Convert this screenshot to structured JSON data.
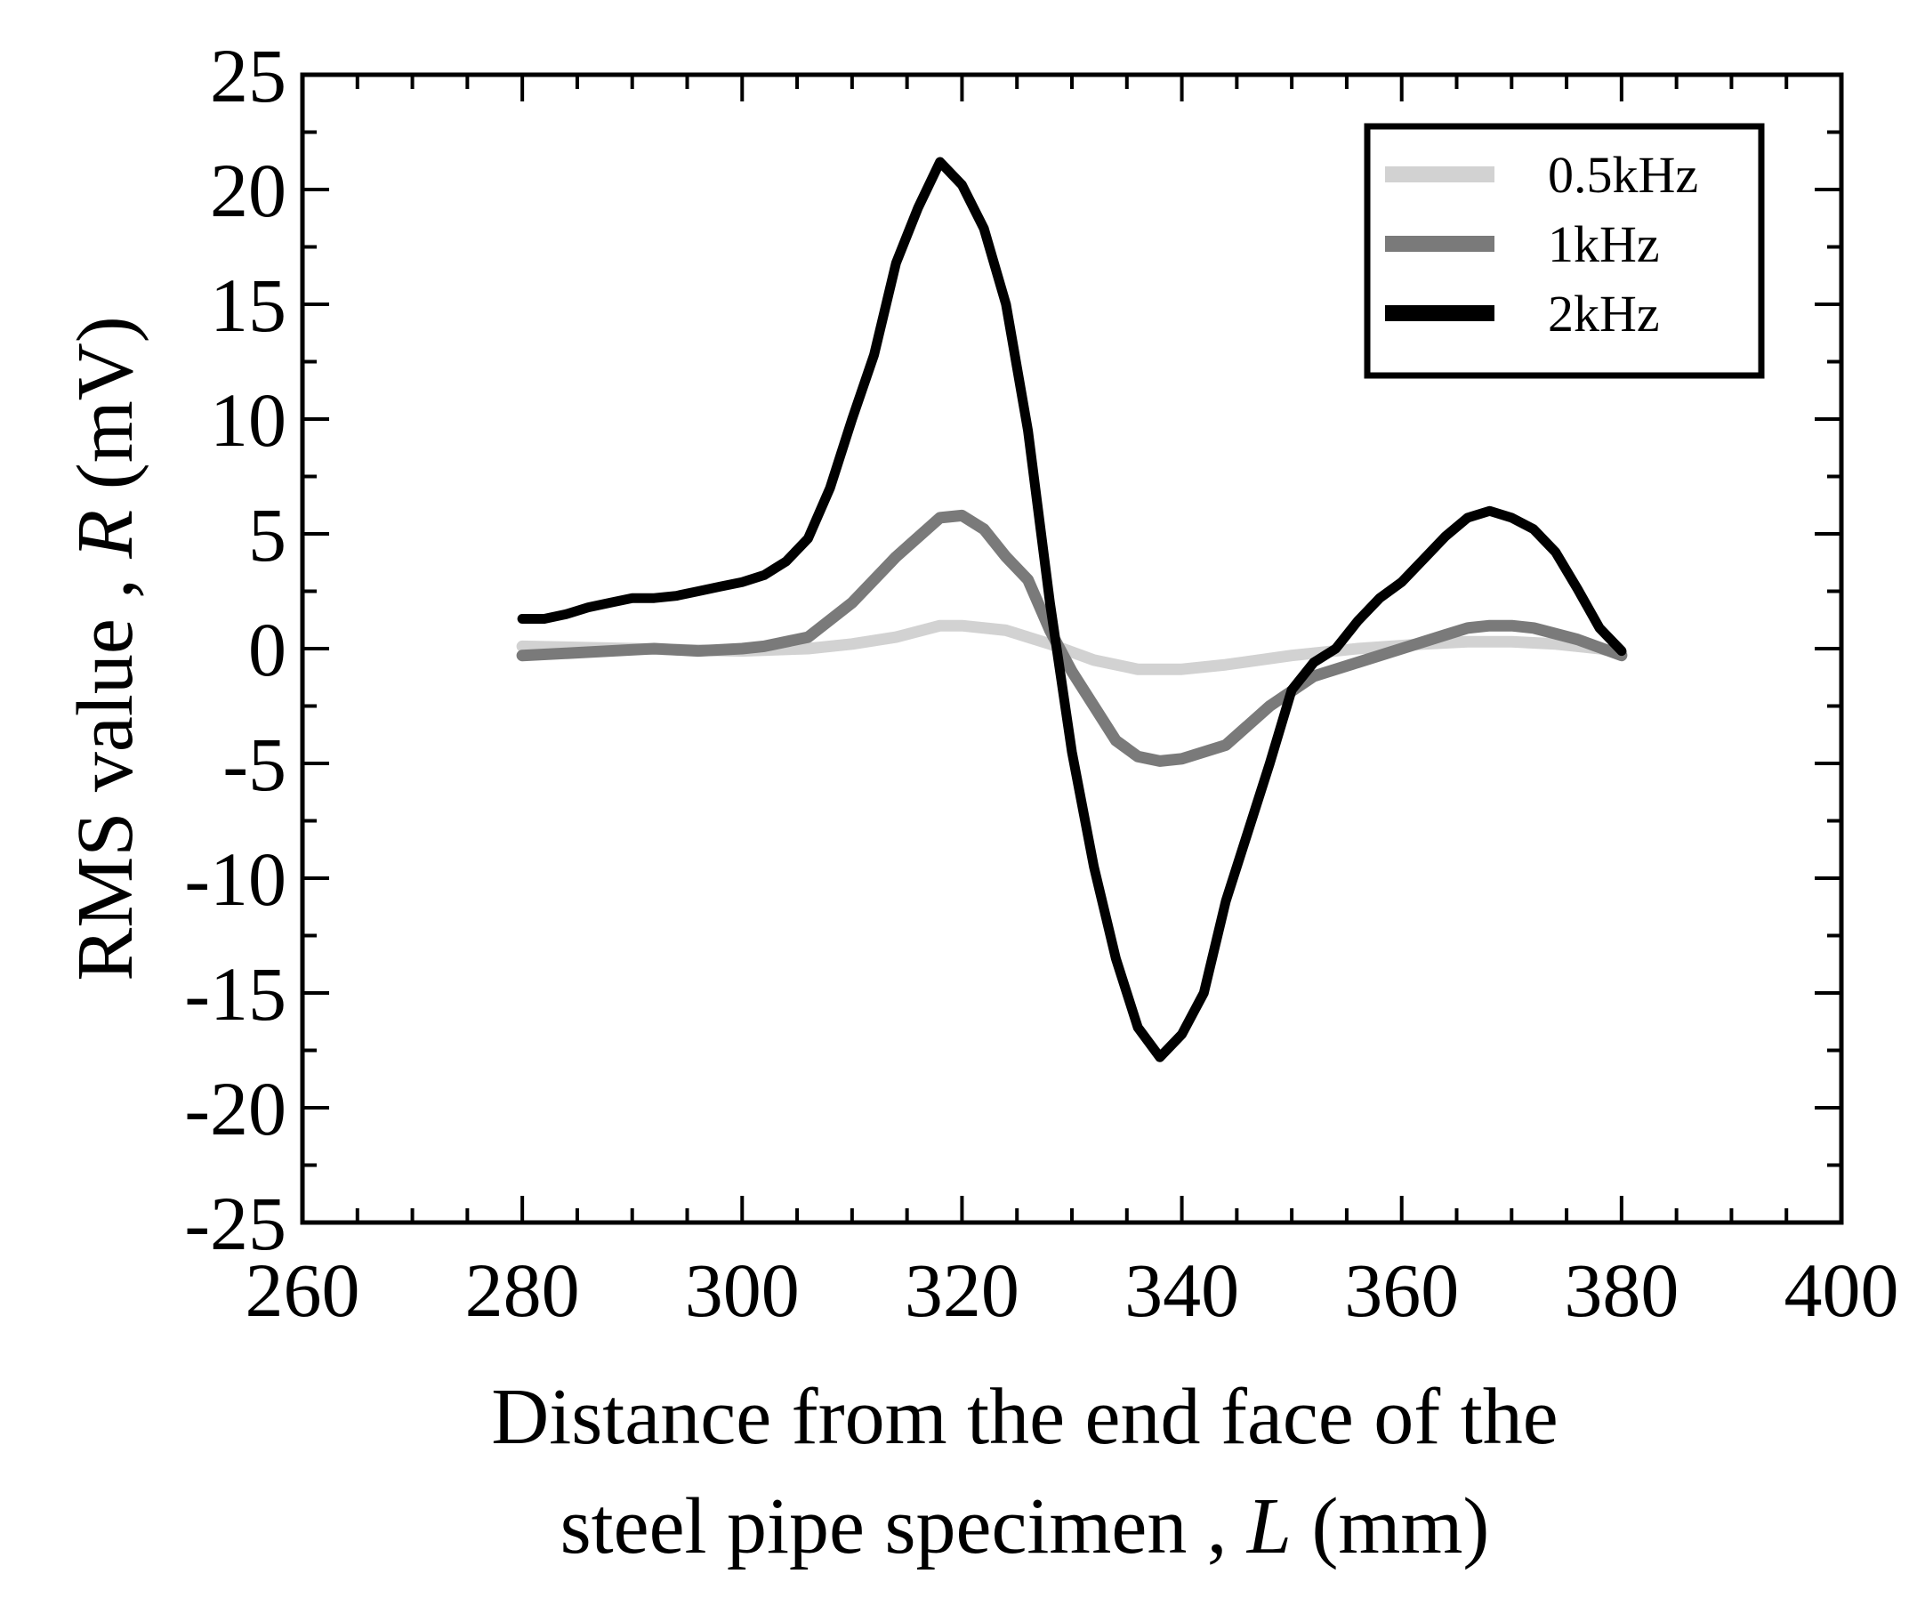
{
  "chart_data": {
    "type": "line",
    "xlabel_line1": "Distance from the end face of the",
    "xlabel_line2_text": "steel pipe specimen , ",
    "xlabel_line2_var": "L",
    "xlabel_line2_unit": " (mm)",
    "ylabel_text": "RMS value , ",
    "ylabel_var": "R",
    "ylabel_unit": " (mV)",
    "xlim": [
      260,
      400
    ],
    "ylim": [
      -25,
      25
    ],
    "x_ticks": [
      260,
      280,
      300,
      320,
      340,
      360,
      380,
      400
    ],
    "y_ticks": [
      -25,
      -20,
      -15,
      -10,
      -5,
      0,
      5,
      10,
      15,
      20,
      25
    ],
    "legend_position": "top-right",
    "grid": false,
    "series": [
      {
        "name": "0.5kHz",
        "color": "#d2d2d2",
        "x": [
          280,
          290,
          300,
          306,
          310,
          314,
          318,
          320,
          324,
          328,
          332,
          336,
          340,
          344,
          350,
          356,
          362,
          366,
          370,
          374,
          378,
          380
        ],
        "y": [
          0.1,
          0.0,
          -0.1,
          0.0,
          0.2,
          0.5,
          1.0,
          1.0,
          0.8,
          0.2,
          -0.5,
          -0.9,
          -0.9,
          -0.7,
          -0.3,
          0.0,
          0.2,
          0.3,
          0.3,
          0.2,
          0.0,
          -0.2
        ]
      },
      {
        "name": "1kHz",
        "color": "#7a7a7a",
        "x": [
          280,
          284,
          288,
          292,
          296,
          300,
          302,
          306,
          310,
          314,
          318,
          320,
          322,
          324,
          326,
          328,
          330,
          332,
          334,
          336,
          338,
          340,
          344,
          348,
          352,
          356,
          360,
          364,
          366,
          368,
          370,
          372,
          376,
          380
        ],
        "y": [
          -0.3,
          -0.2,
          -0.1,
          0.0,
          -0.1,
          0.0,
          0.1,
          0.5,
          2.0,
          4.0,
          5.7,
          5.8,
          5.2,
          4.0,
          3.0,
          0.8,
          -1.0,
          -2.5,
          -4.0,
          -4.7,
          -4.9,
          -4.8,
          -4.2,
          -2.5,
          -1.2,
          -0.6,
          0.0,
          0.6,
          0.9,
          1.0,
          1.0,
          0.9,
          0.4,
          -0.3
        ]
      },
      {
        "name": "2kHz",
        "color": "#000000",
        "x": [
          280,
          282,
          284,
          286,
          288,
          290,
          292,
          294,
          296,
          298,
          300,
          302,
          304,
          306,
          308,
          310,
          312,
          314,
          316,
          318,
          320,
          322,
          324,
          326,
          328,
          330,
          332,
          334,
          336,
          338,
          340,
          342,
          344,
          346,
          348,
          350,
          352,
          354,
          356,
          358,
          360,
          362,
          364,
          366,
          368,
          370,
          372,
          374,
          376,
          378,
          380
        ],
        "y": [
          1.3,
          1.3,
          1.5,
          1.8,
          2.0,
          2.2,
          2.2,
          2.3,
          2.5,
          2.7,
          2.9,
          3.2,
          3.8,
          4.8,
          7.0,
          10.0,
          12.8,
          16.8,
          19.2,
          21.2,
          20.2,
          18.3,
          15.0,
          9.5,
          2.0,
          -4.5,
          -9.5,
          -13.5,
          -16.5,
          -17.8,
          -16.8,
          -15.0,
          -11.0,
          -8.0,
          -5.0,
          -1.8,
          -0.6,
          0.0,
          1.2,
          2.2,
          2.9,
          3.9,
          4.9,
          5.7,
          6.0,
          5.7,
          5.2,
          4.2,
          2.6,
          0.9,
          -0.1
        ]
      }
    ]
  }
}
